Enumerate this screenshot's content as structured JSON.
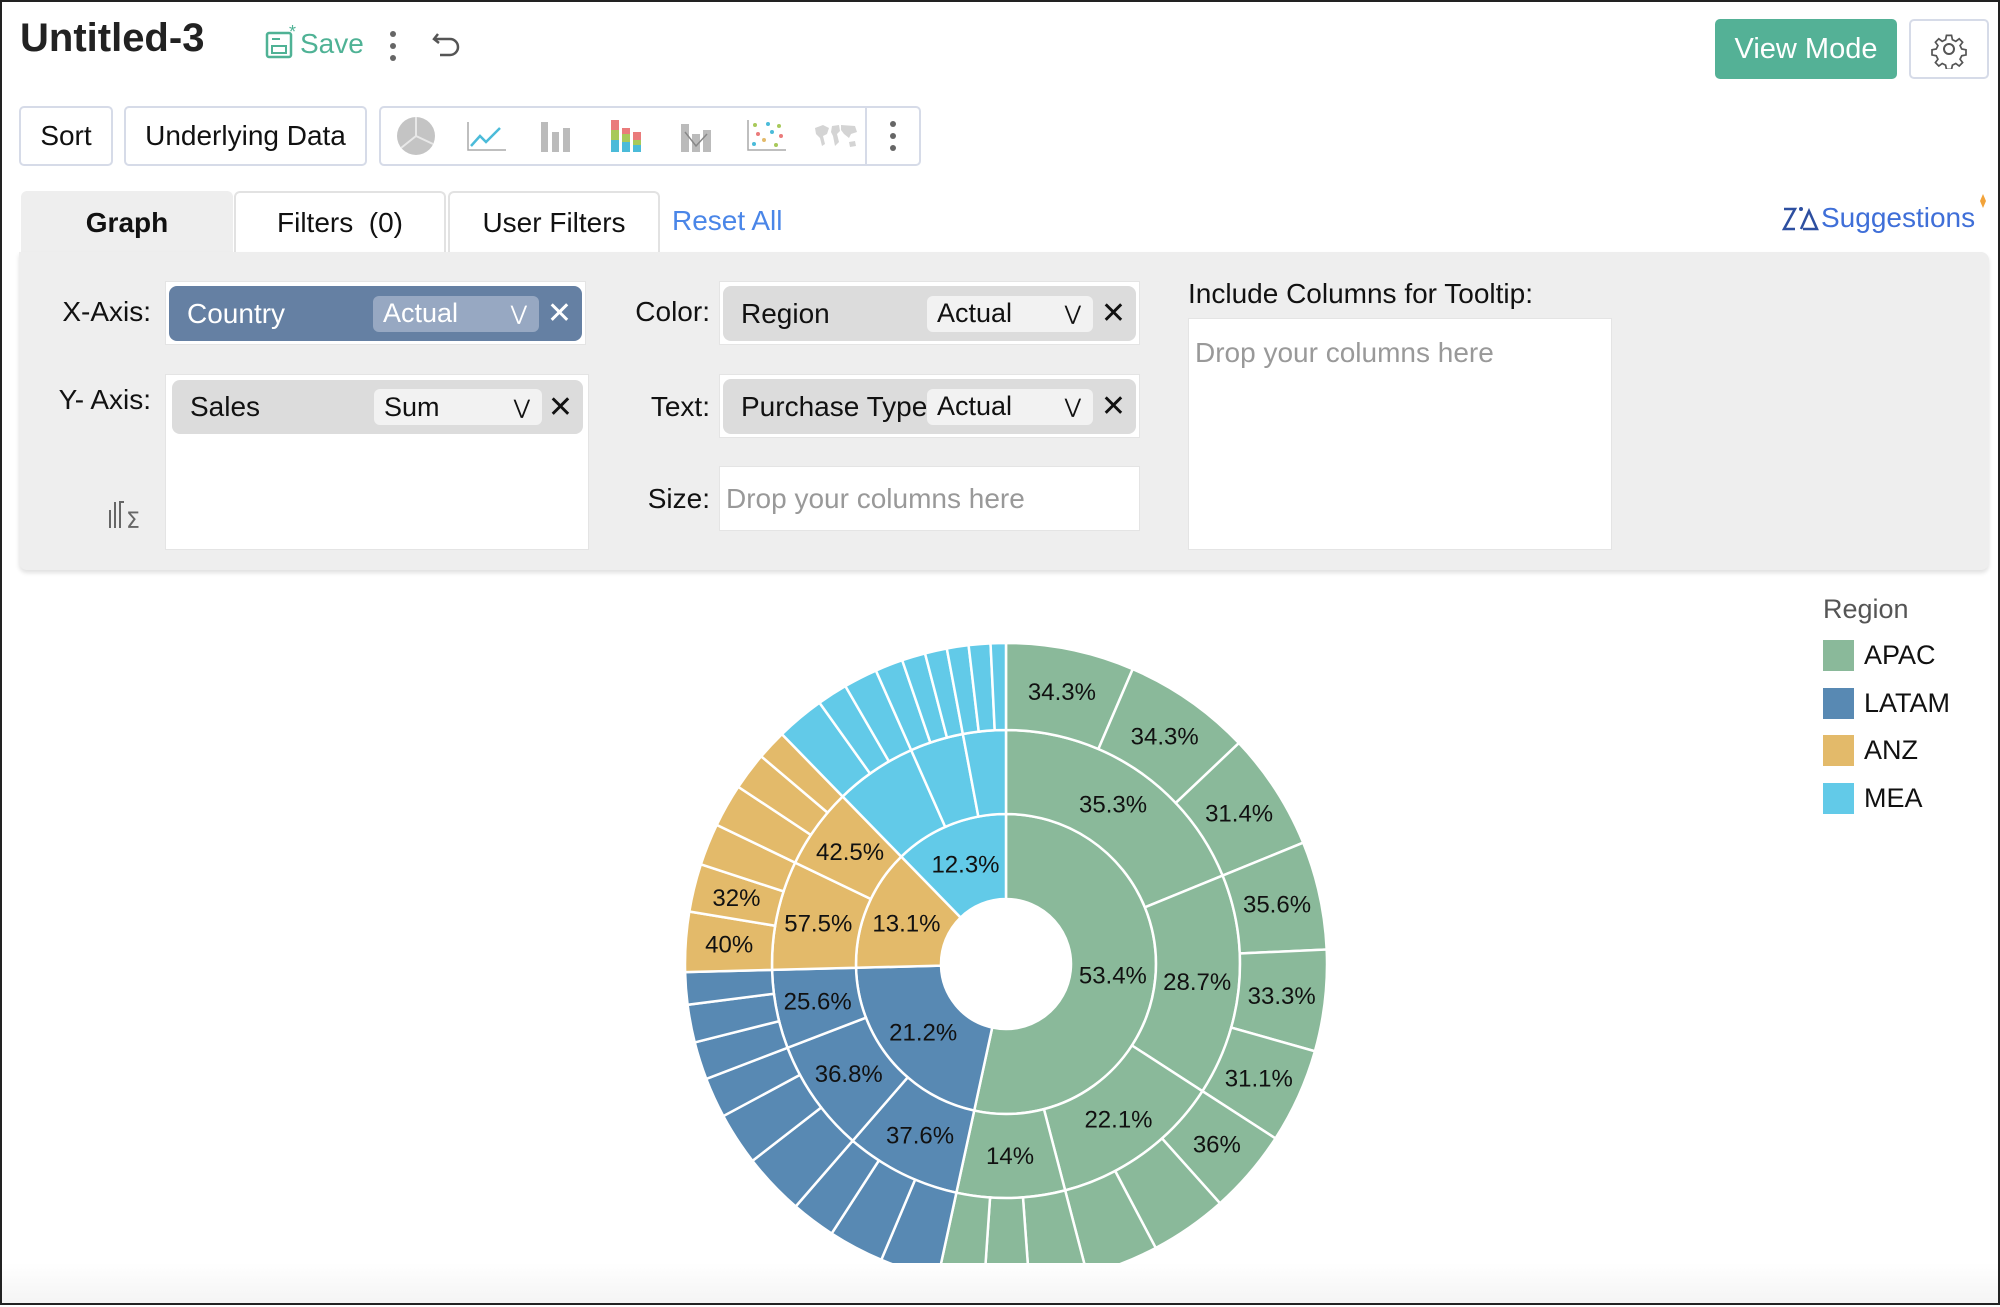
{
  "header": {
    "title": "Untitled-3",
    "save_label": "Save",
    "view_mode_label": "View Mode"
  },
  "toolbar": {
    "sort_label": "Sort",
    "underlying_data_label": "Underlying Data",
    "chart_types": [
      "pie-chart-icon",
      "line-chart-icon",
      "bar-chart-icon",
      "stacked-bar-chart-icon",
      "combination-chart-icon",
      "scatter-chart-icon",
      "map-chart-icon"
    ]
  },
  "tabs": [
    {
      "label": "Graph",
      "active": true
    },
    {
      "label": "Filters  (0)",
      "active": false
    },
    {
      "label": "User Filters",
      "active": false
    }
  ],
  "reset_all_label": "Reset All",
  "suggestions_label": "Suggestions",
  "shelves": {
    "x_axis": {
      "label": "X-Axis:",
      "column": "Country",
      "aggregation": "Actual"
    },
    "y_axis": {
      "label": "Y- Axis:",
      "column": "Sales",
      "aggregation": "Sum"
    },
    "color": {
      "label": "Color:",
      "column": "Region",
      "aggregation": "Actual"
    },
    "text": {
      "label": "Text:",
      "column": "Purchase Type",
      "aggregation": "Actual"
    },
    "size": {
      "label": "Size:",
      "placeholder": "Drop your columns here"
    },
    "tooltip": {
      "label": "Include Columns for Tooltip:",
      "placeholder": "Drop your columns here"
    }
  },
  "colors": {
    "accent": "#54b196",
    "link": "#4a86e8",
    "x_pill": "#6580a3"
  },
  "chart_data": {
    "type": "sunburst",
    "legend_title": "Region",
    "legend_position": "right",
    "value_format": "percent of parent",
    "regions": [
      {
        "name": "APAC",
        "color": "#8ab99a",
        "value": 53.4,
        "labeled": true,
        "children": [
          {
            "value": 35.3,
            "labeled": true,
            "children": [
              {
                "value": 34.3,
                "labeled": true
              },
              {
                "value": 34.3,
                "labeled": true
              },
              {
                "value": 31.4,
                "labeled": true
              }
            ]
          },
          {
            "value": 28.7,
            "labeled": true,
            "children": [
              {
                "value": 35.6,
                "labeled": true
              },
              {
                "value": 33.3,
                "labeled": true
              },
              {
                "value": 31.1,
                "labeled": true
              }
            ]
          },
          {
            "value": 22.1,
            "labeled": true,
            "children": [
              {
                "value": 36,
                "labeled": true
              },
              {
                "value": 33,
                "labeled": false
              },
              {
                "value": 31,
                "labeled": false
              }
            ]
          },
          {
            "value": 14,
            "labeled": true,
            "children": [
              {
                "value": 39,
                "labeled": false
              },
              {
                "value": 30,
                "labeled": false
              },
              {
                "value": 31,
                "labeled": false
              }
            ]
          }
        ]
      },
      {
        "name": "LATAM",
        "color": "#5889b3",
        "value": 21.2,
        "labeled": true,
        "children": [
          {
            "value": 37.6,
            "labeled": true,
            "children": [
              {
                "value": 37,
                "labeled": false
              },
              {
                "value": 35,
                "labeled": false
              },
              {
                "value": 28,
                "labeled": false
              }
            ]
          },
          {
            "value": 36.8,
            "labeled": true,
            "children": [
              {
                "value": 40,
                "labeled": false
              },
              {
                "value": 34,
                "labeled": false
              },
              {
                "value": 26,
                "labeled": false
              }
            ]
          },
          {
            "value": 25.6,
            "labeled": true,
            "children": [
              {
                "value": 35,
                "labeled": false
              },
              {
                "value": 35,
                "labeled": false
              },
              {
                "value": 30,
                "labeled": false
              }
            ]
          }
        ]
      },
      {
        "name": "ANZ",
        "color": "#e3ba6a",
        "value": 13.1,
        "labeled": true,
        "children": [
          {
            "value": 57.5,
            "labeled": true,
            "children": [
              {
                "value": 40,
                "labeled": true
              },
              {
                "value": 32,
                "labeled": true
              },
              {
                "value": 28,
                "labeled": false
              }
            ]
          },
          {
            "value": 42.5,
            "labeled": true,
            "children": [
              {
                "value": 39,
                "labeled": false
              },
              {
                "value": 34,
                "labeled": false
              },
              {
                "value": 27,
                "labeled": false
              }
            ]
          }
        ]
      },
      {
        "name": "MEA",
        "color": "#62cae8",
        "value": 12.3,
        "labeled": true,
        "children": [
          {
            "value": 46,
            "labeled": false,
            "children": [
              {
                "value": 43,
                "labeled": false
              },
              {
                "value": 27,
                "labeled": false
              },
              {
                "value": 30,
                "labeled": false
              }
            ]
          },
          {
            "value": 30,
            "labeled": false,
            "children": [
              {
                "value": 38,
                "labeled": false
              },
              {
                "value": 32,
                "labeled": false
              },
              {
                "value": 30,
                "labeled": false
              }
            ]
          },
          {
            "value": 24,
            "labeled": false,
            "children": [
              {
                "value": 37,
                "labeled": false
              },
              {
                "value": 37,
                "labeled": false
              },
              {
                "value": 26,
                "labeled": false
              }
            ]
          }
        ]
      }
    ]
  }
}
